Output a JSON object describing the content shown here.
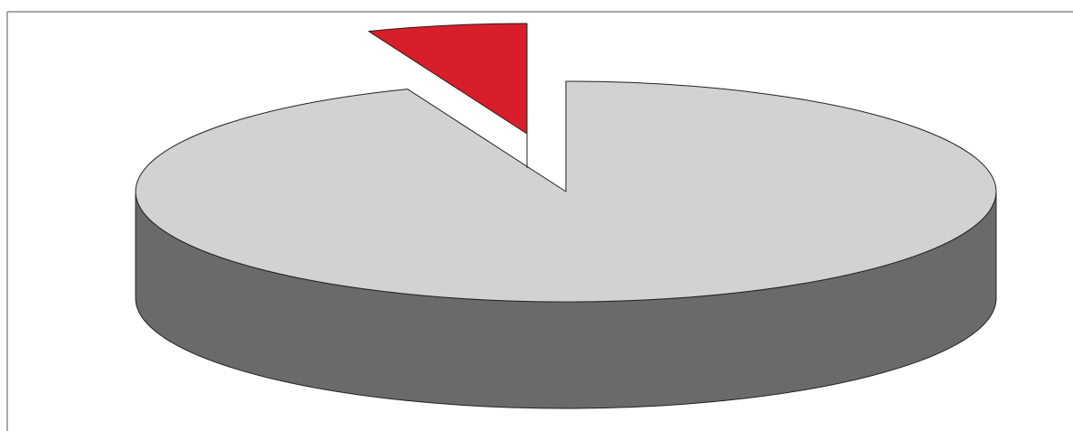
{
  "chart_data": {
    "type": "pie",
    "style": "3d-exploded",
    "title": "",
    "slices": [
      {
        "value": 94,
        "color": "#d2d2d2",
        "side_color": "#6a6a6a",
        "exploded": false
      },
      {
        "value": 6,
        "color": "#d81e2a",
        "side_color": "#7a1418",
        "exploded": true
      }
    ],
    "legend": "none",
    "grid": false
  },
  "colors": {
    "frame_border": "#8c8c8c",
    "outline": "#222222"
  }
}
